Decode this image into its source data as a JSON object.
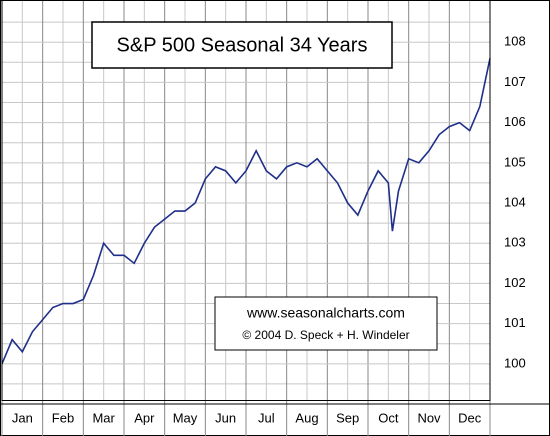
{
  "chart_data": {
    "type": "line",
    "title": "S&P 500 Seasonal 34 Years",
    "annotations": [
      "www.seasonalcharts.com",
      "© 2004 D. Speck + H. Windeler"
    ],
    "x": [
      0,
      0.25,
      0.5,
      0.75,
      1,
      1.25,
      1.5,
      1.75,
      2,
      2.25,
      2.5,
      2.75,
      3,
      3.25,
      3.5,
      3.75,
      4,
      4.25,
      4.5,
      4.75,
      5,
      5.25,
      5.5,
      5.75,
      6,
      6.25,
      6.5,
      6.75,
      7,
      7.25,
      7.5,
      7.75,
      8,
      8.25,
      8.5,
      8.75,
      9,
      9.25,
      9.5,
      9.6,
      9.75,
      10,
      10.25,
      10.5,
      10.75,
      11,
      11.25,
      11.5,
      11.75,
      12
    ],
    "series": [
      {
        "name": "S&P 500",
        "color": "#1f2f8a",
        "values": [
          100.0,
          100.6,
          100.3,
          100.8,
          101.1,
          101.4,
          101.5,
          101.5,
          101.6,
          102.2,
          103.0,
          102.7,
          102.7,
          102.5,
          103.0,
          103.4,
          103.6,
          103.8,
          103.8,
          104.0,
          104.6,
          104.9,
          104.8,
          104.5,
          104.8,
          105.3,
          104.8,
          104.6,
          104.9,
          105.0,
          104.9,
          105.1,
          104.8,
          104.5,
          104.0,
          103.7,
          104.3,
          104.8,
          104.5,
          103.3,
          104.3,
          105.1,
          105.0,
          105.3,
          105.7,
          105.9,
          106.0,
          105.8,
          106.4,
          107.6
        ]
      }
    ],
    "xlim": [
      0,
      12
    ],
    "xticks": [
      {
        "value": 0.5,
        "label": "Jan"
      },
      {
        "value": 1.5,
        "label": "Feb"
      },
      {
        "value": 2.5,
        "label": "Mar"
      },
      {
        "value": 3.5,
        "label": "Apr"
      },
      {
        "value": 4.5,
        "label": "May"
      },
      {
        "value": 5.5,
        "label": "Jun"
      },
      {
        "value": 6.5,
        "label": "Jul"
      },
      {
        "value": 7.5,
        "label": "Aug"
      },
      {
        "value": 8.5,
        "label": "Sep"
      },
      {
        "value": 9.5,
        "label": "Oct"
      },
      {
        "value": 10.5,
        "label": "Nov"
      },
      {
        "value": 11.5,
        "label": "Dec"
      }
    ],
    "xminor": [
      0,
      1,
      2,
      3,
      4,
      5,
      6,
      7,
      8,
      9,
      10,
      11,
      12
    ],
    "ylim": [
      99.1,
      109.05
    ],
    "yticks": [
      100,
      101,
      102,
      103,
      104,
      105,
      106,
      107,
      108
    ],
    "yminor": [
      99.5,
      100.5,
      101.5,
      102.5,
      103.5,
      104.5,
      105.5,
      106.5,
      107.5,
      108.5
    ],
    "grid": true
  }
}
